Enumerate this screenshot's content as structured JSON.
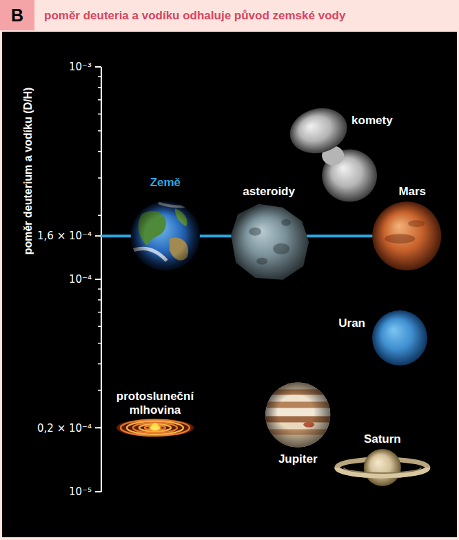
{
  "chart_data": {
    "type": "scatter",
    "panel": "B",
    "title": "poměr deuteria a vodíku odhaluje původ zemské vody",
    "y_label": "poměr deuterium a vodíku (D/H)",
    "log": "y",
    "grid": false,
    "tick_labels": "y",
    "ylim": [
      1e-05,
      0.001
    ],
    "yticks": [
      {
        "value": 0.001,
        "label": "10⁻³"
      },
      {
        "value": 0.00016,
        "label": "1,6 × 10⁻⁴"
      },
      {
        "value": 0.0001,
        "label": "10⁻⁴"
      },
      {
        "value": 2e-05,
        "label": "0,2 × 10⁻⁴"
      },
      {
        "value": 1e-05,
        "label": "10⁻⁵"
      }
    ],
    "xlim": [
      0,
      10
    ],
    "reference_line": 0.00016,
    "series": [
      {
        "name": "Země",
        "marker": "earth",
        "color": "#2a6cc0",
        "x": [
          1.81
        ],
        "values": [
          0.00016
        ]
      },
      {
        "name": "asteroidy",
        "marker": "asteroid",
        "color": "#7d939c",
        "x": [
          4.74
        ],
        "values": [
          0.00015
        ]
      },
      {
        "name": "komety",
        "marker": "comet",
        "color": "#b5b5b5",
        "x": [
          6.63
        ],
        "values": [
          0.0004
        ]
      },
      {
        "name": "Mars",
        "marker": "mars",
        "color": "#c8622c",
        "x": [
          8.64
        ],
        "values": [
          0.00016
        ]
      },
      {
        "name": "Uran",
        "marker": "uranus",
        "color": "#3f8fd0",
        "x": [
          8.44
        ],
        "values": [
          5.3e-05
        ]
      },
      {
        "name": "protosluneční mlhovina",
        "marker": "nebula",
        "color": "#e8782a",
        "x": [
          1.52
        ],
        "values": [
          2e-05
        ]
      },
      {
        "name": "Jupiter",
        "marker": "jupiter",
        "color": "#c9a27a",
        "x": [
          5.56
        ],
        "values": [
          2.3e-05
        ]
      },
      {
        "name": "Saturn",
        "marker": "saturn",
        "color": "#d6c29a",
        "x": [
          7.95
        ],
        "values": [
          1.3e-05
        ]
      }
    ]
  }
}
